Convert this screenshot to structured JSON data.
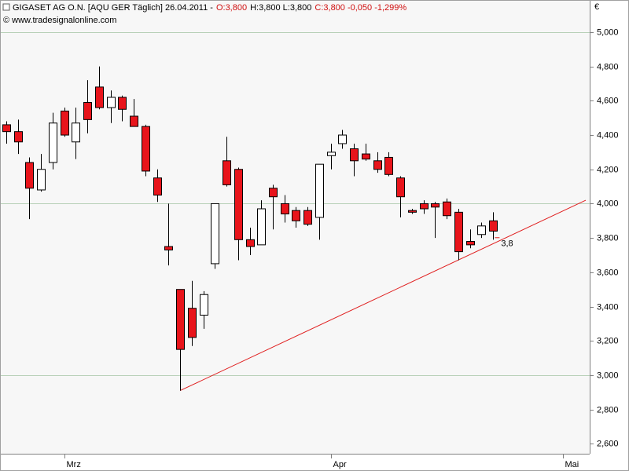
{
  "chart_data": {
    "type": "candlestick",
    "title": "GIGASET AG O.N. [AQU GER  Täglich] 26.04.2011 -",
    "quote_segments": [
      {
        "text": "O:3,800",
        "color": "#d01010"
      },
      {
        "text": "H:3,800 L:3,800",
        "color": "#000000"
      },
      {
        "text": "C:3,800 -0,050 -1,299%",
        "color": "#d01010"
      }
    ],
    "source": "© www.tradesignalonline.com",
    "y_unit_label": "€",
    "x": [
      0,
      1,
      2,
      3,
      4,
      5,
      6,
      7,
      8,
      9,
      10,
      11,
      12,
      13,
      14,
      15,
      16,
      17,
      18,
      19,
      20,
      21,
      22,
      23,
      24,
      25,
      26,
      27,
      28,
      29,
      30,
      31,
      32,
      33,
      34,
      35,
      36,
      37,
      38,
      39,
      40,
      41,
      42
    ],
    "open": [
      4.46,
      4.42,
      4.24,
      4.08,
      4.24,
      4.54,
      4.36,
      4.59,
      4.68,
      4.56,
      4.62,
      4.51,
      4.45,
      4.15,
      3.75,
      3.5,
      3.39,
      3.35,
      3.65,
      4.25,
      4.2,
      3.79,
      3.76,
      4.09,
      4.0,
      3.96,
      3.96,
      3.92,
      4.28,
      4.35,
      4.32,
      4.29,
      4.25,
      4.27,
      4.15,
      3.96,
      4.0,
      4.0,
      4.01,
      3.95,
      3.78,
      3.82,
      3.9
    ],
    "high": [
      4.48,
      4.49,
      4.27,
      4.29,
      4.53,
      4.56,
      4.56,
      4.72,
      4.8,
      4.66,
      4.63,
      4.61,
      4.46,
      4.2,
      4.0,
      3.5,
      3.55,
      3.49,
      4.0,
      4.39,
      4.21,
      3.86,
      4.02,
      4.11,
      4.05,
      3.98,
      3.98,
      4.23,
      4.35,
      4.43,
      4.35,
      4.35,
      4.3,
      4.3,
      4.16,
      3.97,
      4.02,
      4.01,
      4.03,
      3.97,
      3.85,
      3.89,
      3.95
    ],
    "low": [
      4.35,
      4.29,
      3.91,
      4.07,
      4.2,
      4.39,
      4.26,
      4.41,
      4.55,
      4.47,
      4.48,
      4.45,
      4.16,
      4.01,
      3.64,
      2.91,
      3.17,
      3.27,
      3.62,
      4.1,
      3.67,
      3.7,
      3.76,
      3.85,
      3.89,
      3.86,
      3.87,
      3.79,
      4.2,
      4.32,
      4.16,
      4.25,
      4.18,
      4.16,
      3.92,
      3.94,
      3.94,
      3.8,
      3.91,
      3.67,
      3.74,
      3.8,
      3.79
    ],
    "close": [
      4.42,
      4.36,
      4.09,
      4.2,
      4.47,
      4.4,
      4.47,
      4.49,
      4.56,
      4.62,
      4.55,
      4.45,
      4.19,
      4.05,
      3.73,
      3.15,
      3.22,
      3.47,
      4.0,
      4.11,
      3.79,
      3.75,
      3.97,
      4.04,
      3.94,
      3.9,
      3.88,
      4.23,
      4.3,
      4.4,
      4.25,
      4.26,
      4.2,
      4.17,
      4.04,
      3.95,
      3.97,
      3.98,
      3.93,
      3.72,
      3.76,
      3.87,
      3.84
    ],
    "up_color": "#ffffff",
    "down_color": "#e8141b",
    "xlim": [
      -0.54,
      50.34
    ],
    "xticks": [
      {
        "value": 5,
        "label": "Mrz"
      },
      {
        "value": 28,
        "label": "Apr"
      },
      {
        "value": 48,
        "label": "Mai"
      }
    ],
    "ylim": [
      2.542,
      5.105
    ],
    "yticks": [
      {
        "value": 2.6,
        "label": "2,600"
      },
      {
        "value": 2.8,
        "label": "2,800"
      },
      {
        "value": 3.0,
        "label": "3,000"
      },
      {
        "value": 3.2,
        "label": "3,200"
      },
      {
        "value": 3.4,
        "label": "3,400"
      },
      {
        "value": 3.6,
        "label": "3,600"
      },
      {
        "value": 3.8,
        "label": "3,800"
      },
      {
        "value": 4.0,
        "label": "4,000"
      },
      {
        "value": 4.2,
        "label": "4,200"
      },
      {
        "value": 4.4,
        "label": "4,400"
      },
      {
        "value": 4.6,
        "label": "4,600"
      },
      {
        "value": 4.8,
        "label": "4,800"
      },
      {
        "value": 5.0,
        "label": "5,000"
      }
    ],
    "ygrid": [
      3,
      4,
      5
    ],
    "grid_color": "#b8d0b8",
    "trendline": {
      "x": [
        15,
        50
      ],
      "y": [
        2.91,
        4.02
      ],
      "color": "#e02020"
    },
    "trendline_label": {
      "text": "3,8",
      "x": 42.7,
      "y": 3.765
    }
  }
}
